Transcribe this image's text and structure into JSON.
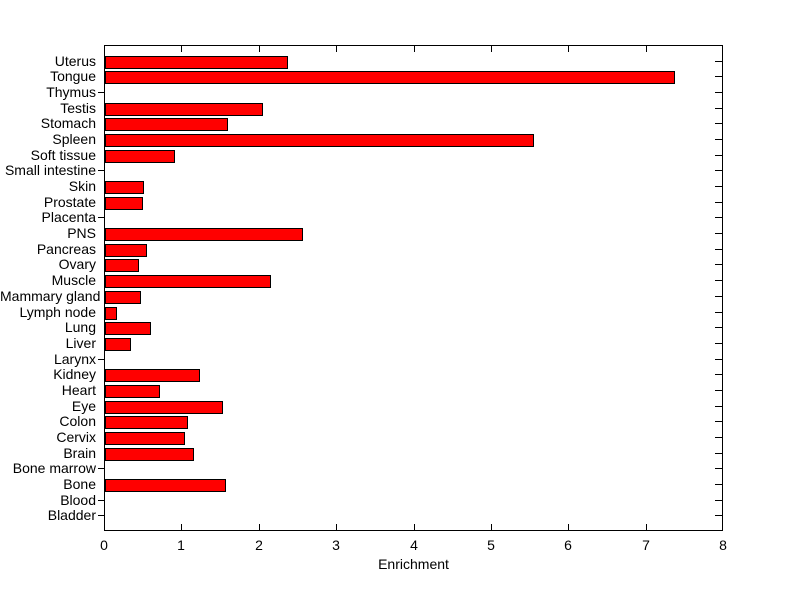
{
  "figure": {
    "background_color": "#ffffff",
    "axis_color": "#000000",
    "text_color": "#000000"
  },
  "chart_data": {
    "type": "bar",
    "orientation": "horizontal",
    "title": "",
    "xlabel": "Enrichment",
    "ylabel": "",
    "xlim": [
      0,
      8
    ],
    "xticks": [
      0,
      1,
      2,
      3,
      4,
      5,
      6,
      7,
      8
    ],
    "grid": false,
    "legend": null,
    "bar_color": "#ff0000",
    "bar_edge_color": "#000000",
    "categories": [
      "Uterus",
      "Tongue",
      "Thymus",
      "Testis",
      "Stomach",
      "Spleen",
      "Soft tissue",
      "Small intestine",
      "Skin",
      "Prostate",
      "Placenta",
      "PNS",
      "Pancreas",
      "Ovary",
      "Muscle",
      "Mammary gland",
      "Lymph node",
      "Lung",
      "Liver",
      "Larynx",
      "Kidney",
      "Heart",
      "Eye",
      "Colon",
      "Cervix",
      "Brain",
      "Bone marrow",
      "Bone",
      "Blood",
      "Bladder"
    ],
    "values": [
      2.36,
      7.37,
      0,
      2.04,
      1.59,
      5.54,
      0.9,
      0,
      0.51,
      0.49,
      0,
      2.56,
      0.54,
      0.44,
      2.15,
      0.46,
      0.16,
      0.59,
      0.33,
      0,
      1.23,
      0.71,
      1.52,
      1.07,
      1.04,
      1.15,
      0,
      1.56,
      0,
      0
    ]
  }
}
